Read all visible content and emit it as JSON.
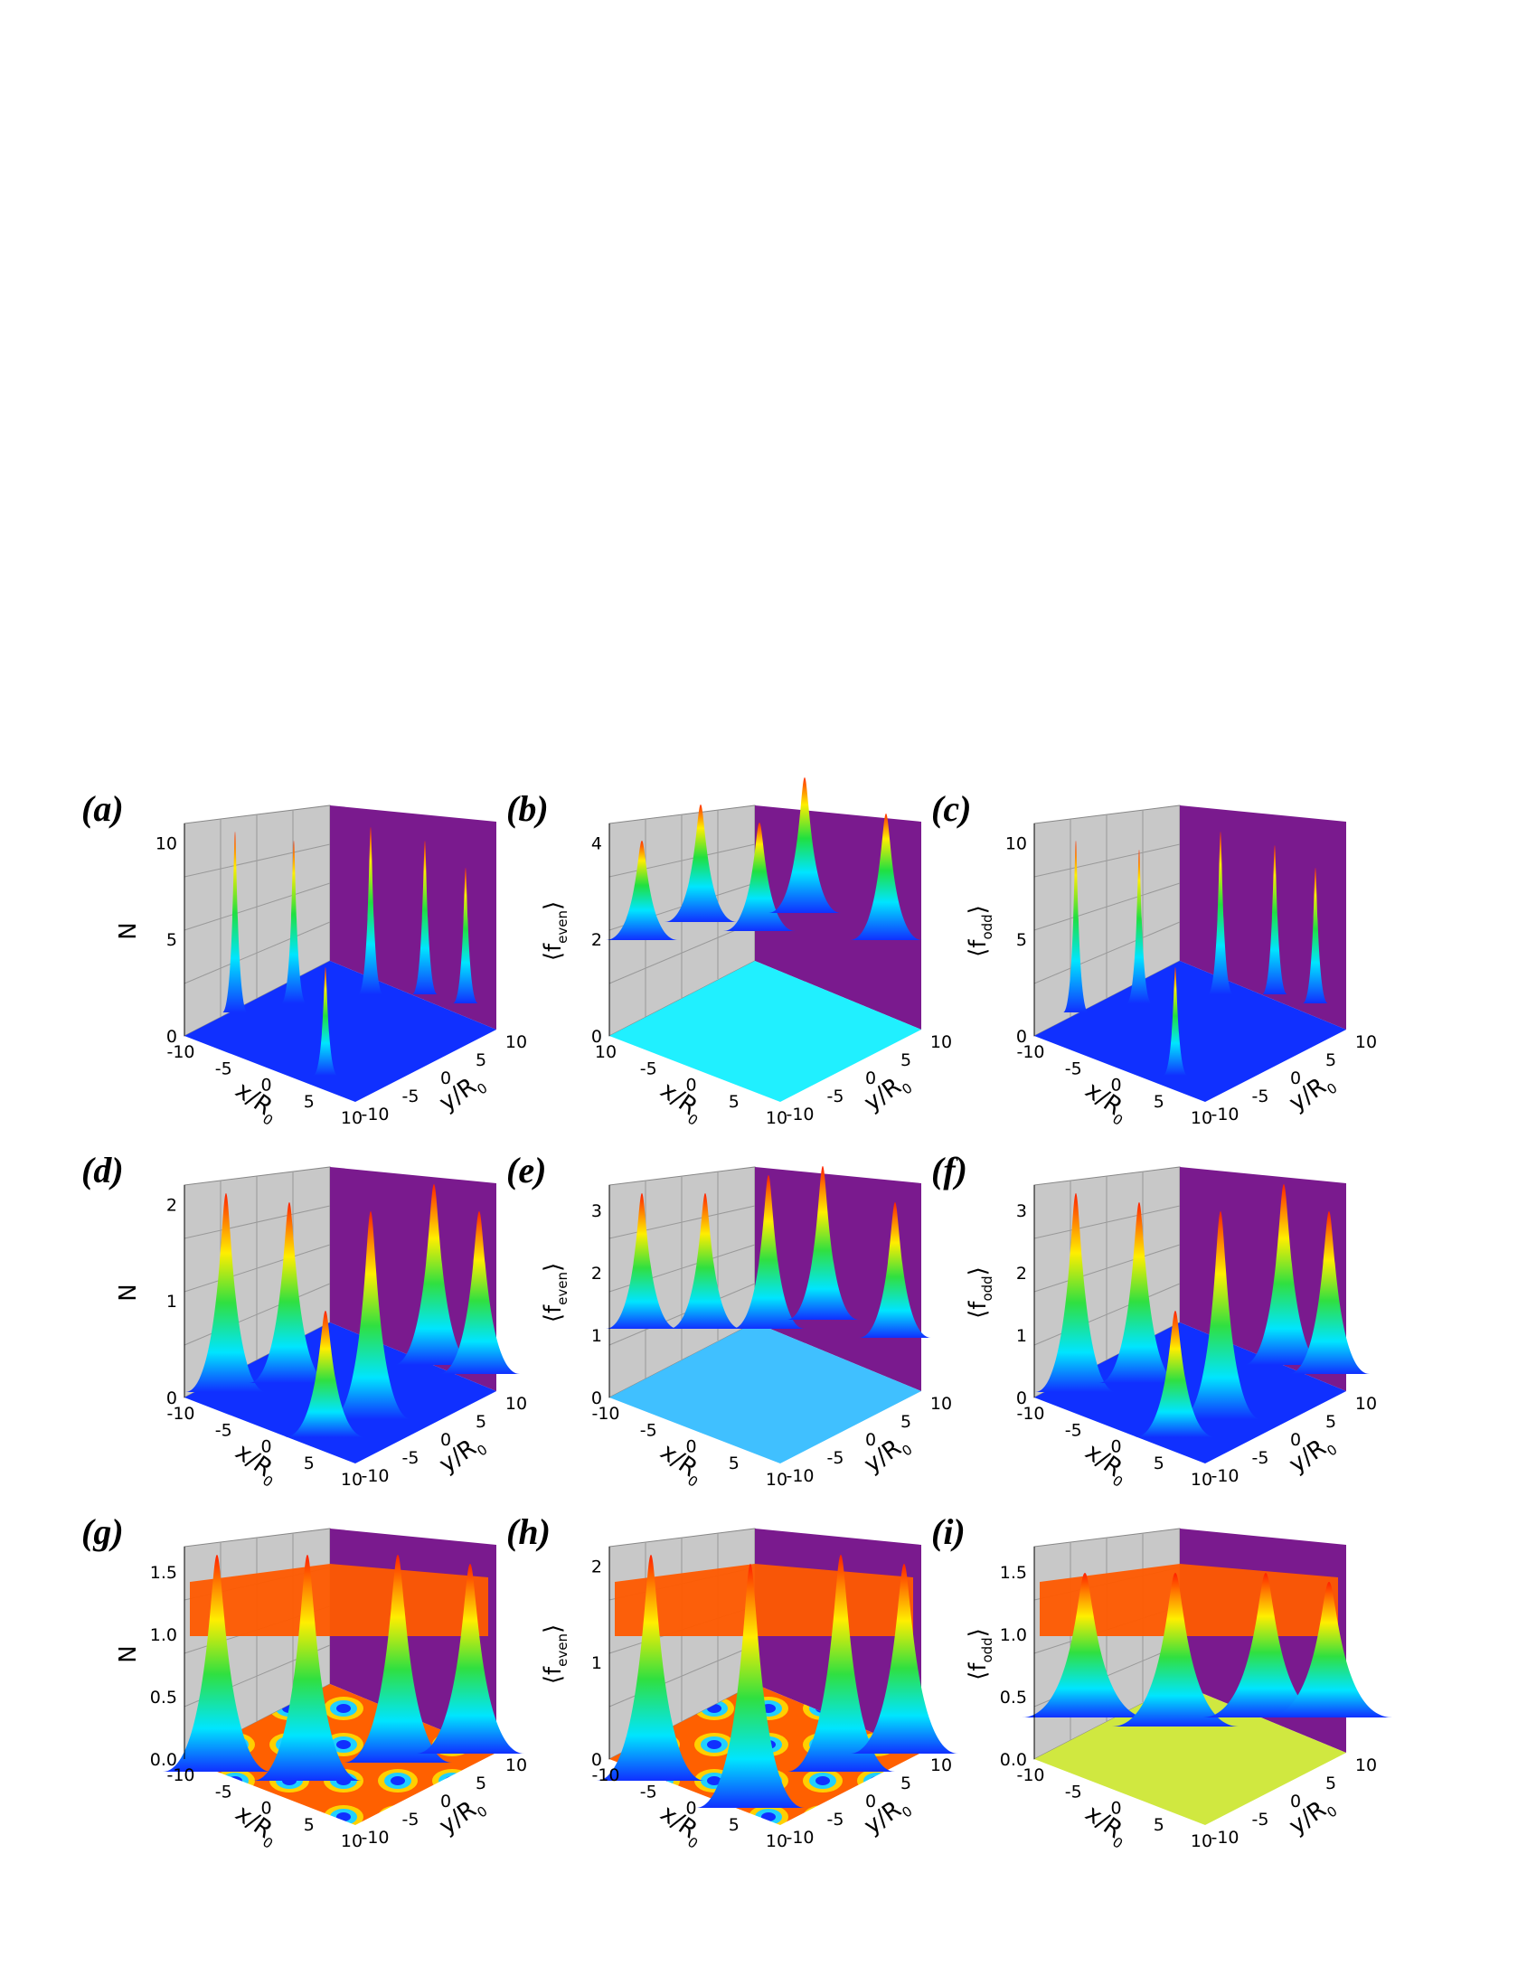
{
  "panels": [
    {
      "label": "(a)",
      "zlabel": "N",
      "zticks": [
        "0",
        "5",
        "10"
      ],
      "xlabel": "x/R",
      "xlabel_sub": "0",
      "xticks": [
        "-10",
        "-5",
        "0",
        "5",
        "10"
      ],
      "ylabel": "y/R",
      "ylabel_sub": "0",
      "yticks": [
        "-10",
        "-5",
        "0",
        "5",
        "10"
      ]
    },
    {
      "label": "(b)",
      "zlabel": "⟨f",
      "zlabel_sub": "even",
      "zlabel_end": "⟩",
      "zticks": [
        "0",
        "2",
        "4"
      ],
      "xlabel": "x/R",
      "xlabel_sub": "0",
      "xticks": [
        "10",
        "-5",
        "0",
        "5",
        "10"
      ],
      "ylabel": "y/R",
      "ylabel_sub": "0",
      "yticks": [
        "-10",
        "-5",
        "0",
        "5",
        "10"
      ]
    },
    {
      "label": "(c)",
      "zlabel": "⟨f",
      "zlabel_sub": "odd",
      "zlabel_end": "⟩",
      "zticks": [
        "0",
        "5",
        "10"
      ],
      "xlabel": "x/R",
      "xlabel_sub": "0",
      "xticks": [
        "-10",
        "-5",
        "0",
        "5",
        "10"
      ],
      "ylabel": "y/R",
      "ylabel_sub": "0",
      "yticks": [
        "-10",
        "-5",
        "0",
        "5",
        "10"
      ]
    },
    {
      "label": "(d)",
      "zlabel": "N",
      "zticks": [
        "0",
        "1",
        "2"
      ],
      "xlabel": "x/R",
      "xlabel_sub": "0",
      "xticks": [
        "-10",
        "-5",
        "0",
        "5",
        "10"
      ],
      "ylabel": "y/R",
      "ylabel_sub": "0",
      "yticks": [
        "-10",
        "-5",
        "0",
        "5",
        "10"
      ]
    },
    {
      "label": "(e)",
      "zlabel": "⟨f",
      "zlabel_sub": "even",
      "zlabel_end": "⟩",
      "zticks": [
        "0",
        "1",
        "2",
        "3"
      ],
      "xlabel": "x/R",
      "xlabel_sub": "0",
      "xticks": [
        "-10",
        "-5",
        "0",
        "5",
        "10"
      ],
      "ylabel": "y/R",
      "ylabel_sub": "0",
      "yticks": [
        "-10",
        "-5",
        "0",
        "5",
        "10"
      ]
    },
    {
      "label": "(f)",
      "zlabel": "⟨f",
      "zlabel_sub": "odd",
      "zlabel_end": "⟩",
      "zticks": [
        "0",
        "1",
        "2",
        "3"
      ],
      "xlabel": "x/R",
      "xlabel_sub": "0",
      "xticks": [
        "-10",
        "-5",
        "0",
        "5",
        "10"
      ],
      "ylabel": "y/R",
      "ylabel_sub": "0",
      "yticks": [
        "-10",
        "-5",
        "0",
        "5",
        "10"
      ]
    },
    {
      "label": "(g)",
      "zlabel": "N",
      "zticks": [
        "0.0",
        "0.5",
        "1.0",
        "1.5"
      ],
      "xlabel": "x/R",
      "xlabel_sub": "0",
      "xticks": [
        "-10",
        "-5",
        "0",
        "5",
        "10"
      ],
      "ylabel": "y/R",
      "ylabel_sub": "0",
      "yticks": [
        "-10",
        "-5",
        "0",
        "5",
        "10"
      ]
    },
    {
      "label": "(h)",
      "zlabel": "⟨f",
      "zlabel_sub": "even",
      "zlabel_end": "⟩",
      "zticks": [
        "0",
        "1",
        "2"
      ],
      "xlabel": "x/R",
      "xlabel_sub": "0",
      "xticks": [
        "-10",
        "-5",
        "0",
        "5",
        "10"
      ],
      "ylabel": "y/R",
      "ylabel_sub": "0",
      "yticks": [
        "-10",
        "-5",
        "0",
        "5",
        "10"
      ]
    },
    {
      "label": "(i)",
      "zlabel": "⟨f",
      "zlabel_sub": "odd",
      "zlabel_end": "⟩",
      "zticks": [
        "0.0",
        "0.5",
        "1.0",
        "1.5"
      ],
      "xlabel": "x/R",
      "xlabel_sub": "0",
      "xticks": [
        "-10",
        "-5",
        "0",
        "5",
        "10"
      ],
      "ylabel": "y/R",
      "ylabel_sub": "0",
      "yticks": [
        "-10",
        "-5",
        "0",
        "5",
        "10"
      ]
    }
  ]
}
